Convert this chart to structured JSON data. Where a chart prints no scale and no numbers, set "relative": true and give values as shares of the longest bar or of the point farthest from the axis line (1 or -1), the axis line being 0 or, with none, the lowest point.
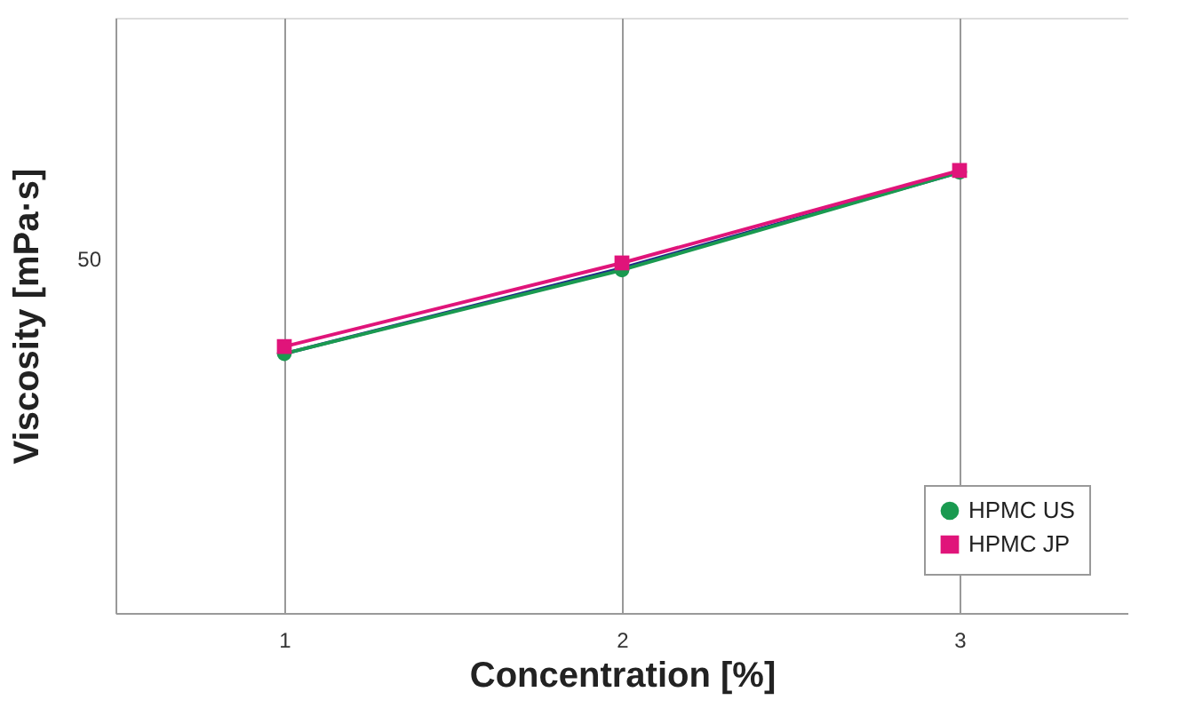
{
  "chart_data": {
    "type": "line",
    "relative": true,
    "xlabel": "Concentration [%]",
    "ylabel": "Viscosity [mPa·s]",
    "x": [
      1,
      2,
      3
    ],
    "xlim": [
      0.5,
      3.5
    ],
    "xticks": [
      1,
      2,
      3
    ],
    "grid": "x",
    "legend": "bottom right",
    "series": [
      {
        "color": "#1f2a8a",
        "marker": "diamond",
        "values": [
          0.586,
          0.779,
          0.996
        ]
      },
      {
        "name": "HPMC US",
        "color": "#1a9a50",
        "marker": "circle",
        "values": [
          0.586,
          0.775,
          0.996
        ]
      },
      {
        "name": "HPMC JP",
        "color": "#e0147a",
        "marker": "square",
        "values": [
          0.602,
          0.791,
          1.0
        ]
      }
    ],
    "annotations": [
      "50"
    ]
  }
}
